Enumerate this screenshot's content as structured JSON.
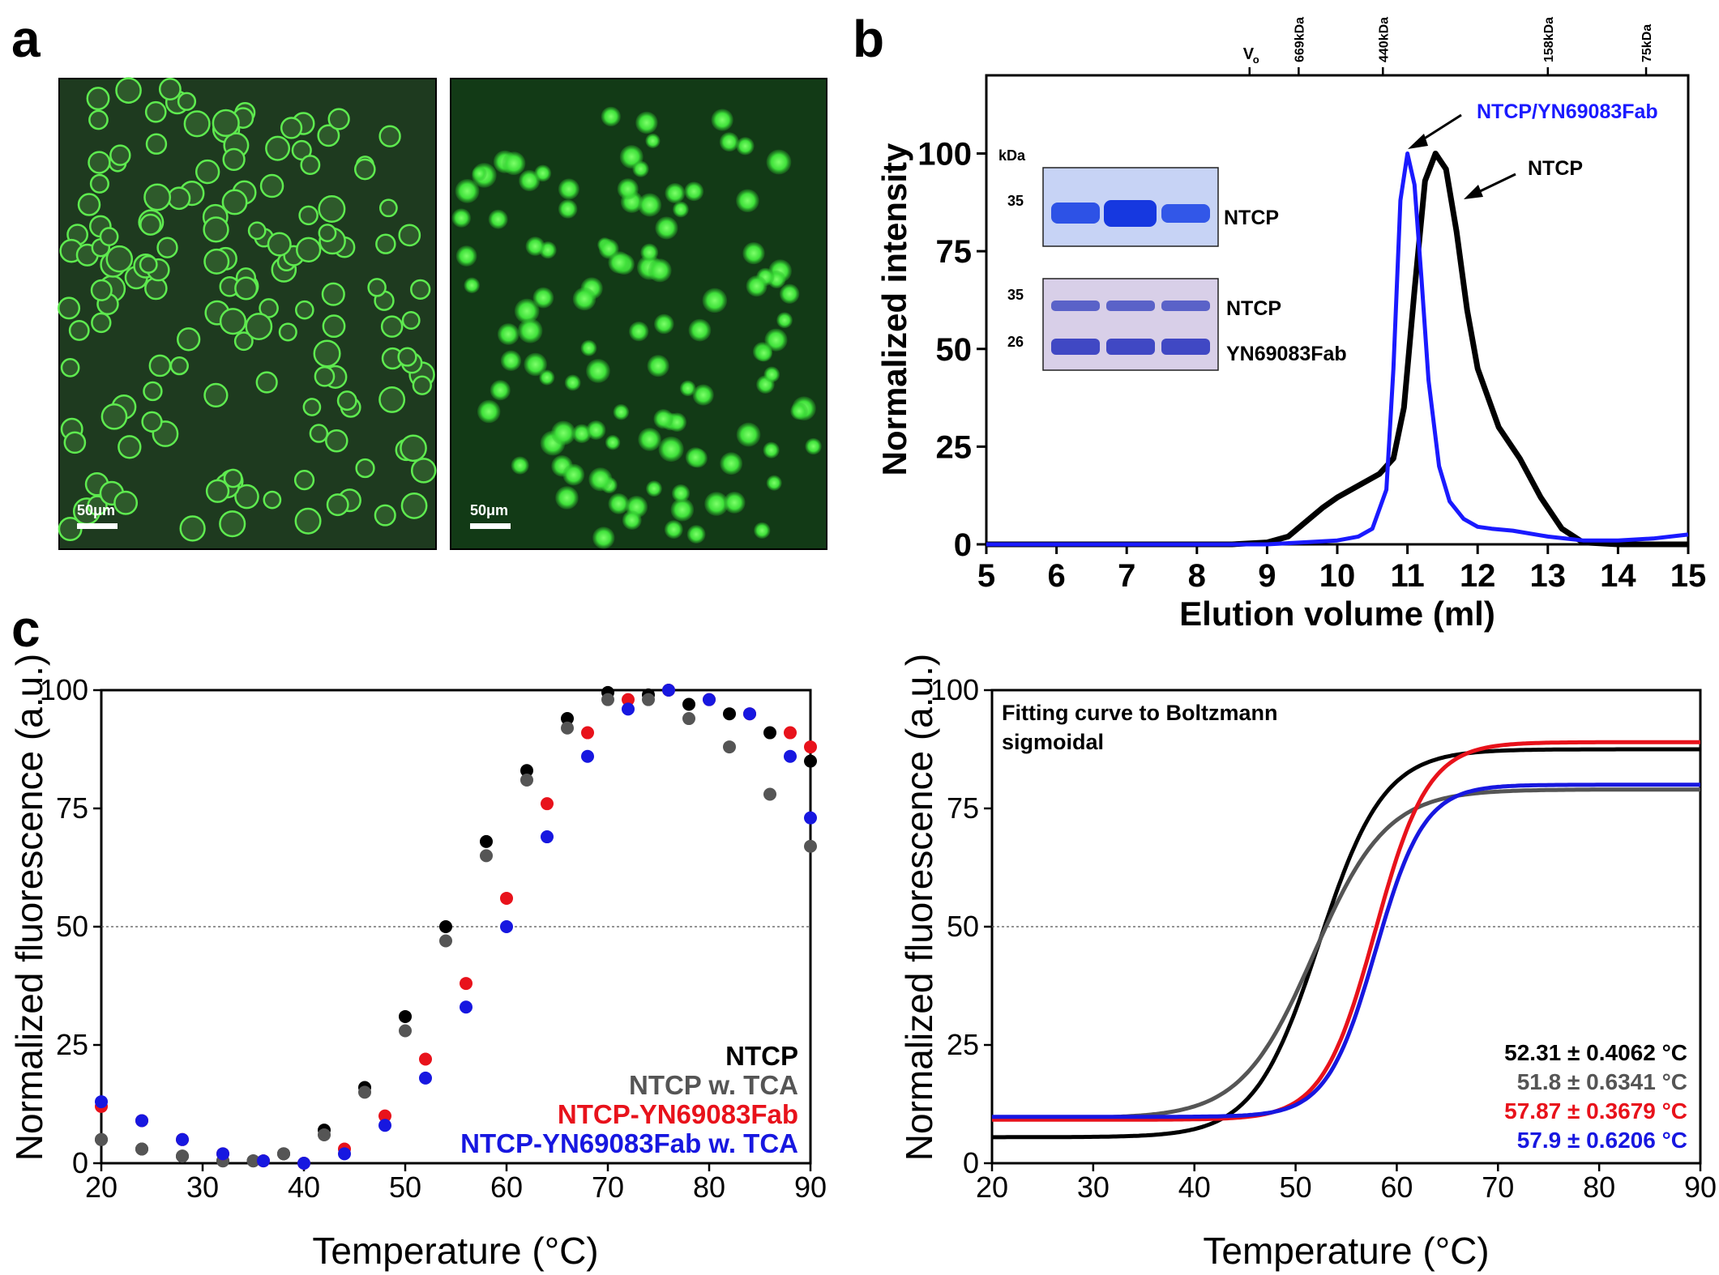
{
  "panels": {
    "a": "a",
    "b": "b",
    "c": "c"
  },
  "panel_a": {
    "scale_bar_left": "50μm",
    "scale_bar_right": "50μm",
    "color": "#22d63a"
  },
  "gel": {
    "kda": "kDa",
    "top_marker": "35",
    "top_band": "NTCP",
    "bottom_markers": [
      "35",
      "26"
    ],
    "bottom_bands": [
      "NTCP",
      "YN69083Fab"
    ]
  },
  "sec_annotations": {
    "complex": "NTCP/YN69083Fab",
    "ntcp": "NTCP"
  },
  "mw_markers": [
    {
      "label": "V",
      "sub": "o",
      "x": 8.75
    },
    {
      "label": "669kDa",
      "x": 9.45
    },
    {
      "label": "440kDa",
      "x": 10.65
    },
    {
      "label": "158kDa",
      "x": 13.0
    },
    {
      "label": "75kDa",
      "x": 14.4
    }
  ],
  "legend_c1": [
    {
      "name": "NTCP",
      "color": "#000000"
    },
    {
      "name": "NTCP w. TCA",
      "color": "#555555"
    },
    {
      "name": "NTCP-YN69083Fab",
      "color": "#e8121b"
    },
    {
      "name": "NTCP-YN69083Fab w. TCA",
      "color": "#1717e0"
    }
  ],
  "fit": {
    "title_line1": "Fitting curve to Boltzmann",
    "title_line2": "sigmoidal",
    "values": [
      {
        "text": "52.31 ± 0.4062 °C",
        "color": "#000000"
      },
      {
        "text": "51.8 ± 0.6341 °C",
        "color": "#555555"
      },
      {
        "text": "57.87 ± 0.3679 °C",
        "color": "#e8121b"
      },
      {
        "text": "57.9 ± 0.6206 °C",
        "color": "#1717e0"
      }
    ]
  },
  "chart_data": [
    {
      "type": "line",
      "xlabel": "Elution volume (ml)",
      "ylabel": "Normalized intensity",
      "xlim": [
        5,
        15
      ],
      "ylim": [
        0,
        120
      ],
      "xticks": [
        5,
        6,
        7,
        8,
        9,
        10,
        11,
        12,
        13,
        14,
        15
      ],
      "yticks": [
        0,
        25,
        50,
        75,
        100
      ],
      "series": [
        {
          "name": "NTCP",
          "color": "#000000",
          "x": [
            5,
            8.5,
            9.0,
            9.3,
            9.5,
            9.8,
            10.0,
            10.3,
            10.6,
            10.8,
            10.95,
            11.1,
            11.25,
            11.4,
            11.55,
            11.7,
            11.85,
            12.0,
            12.3,
            12.6,
            12.9,
            13.2,
            13.5,
            14,
            15
          ],
          "y": [
            0,
            0,
            0.5,
            2,
            5,
            9.5,
            12,
            15,
            18,
            22,
            35,
            65,
            93,
            100,
            96,
            80,
            60,
            45,
            30,
            22,
            12,
            4,
            0.5,
            0,
            0
          ]
        },
        {
          "name": "NTCP/YN69083Fab",
          "color": "#1a1aff",
          "x": [
            5,
            9,
            9.5,
            10.0,
            10.3,
            10.5,
            10.7,
            10.8,
            10.9,
            11.0,
            11.1,
            11.2,
            11.3,
            11.45,
            11.6,
            11.8,
            12.0,
            12.2,
            12.5,
            13.0,
            13.5,
            14,
            14.5,
            15
          ],
          "y": [
            0,
            0,
            0.5,
            1,
            2,
            4,
            14,
            45,
            88,
            100,
            92,
            68,
            42,
            20,
            11,
            6.5,
            4.5,
            4,
            3.5,
            2,
            1,
            1,
            1.5,
            2.5
          ]
        }
      ]
    },
    {
      "type": "scatter",
      "xlabel": "Temperature (°C)",
      "ylabel": "Normalized fluorescence (a.u.)",
      "xlim": [
        20,
        90
      ],
      "ylim": [
        0,
        100
      ],
      "xticks": [
        20,
        30,
        40,
        50,
        60,
        70,
        80,
        90
      ],
      "yticks": [
        0,
        25,
        50,
        75,
        100
      ],
      "reference_line": 50,
      "series": [
        {
          "name": "NTCP",
          "color": "#000000",
          "x": [
            20,
            24,
            28,
            32,
            35,
            38,
            42,
            46,
            50,
            54,
            58,
            62,
            66,
            70,
            74,
            78,
            82,
            86,
            90
          ],
          "y": [
            5,
            3,
            1.5,
            0.5,
            0.5,
            2,
            7,
            16,
            31,
            50,
            68,
            83,
            94,
            99.5,
            99,
            97,
            95,
            91,
            85
          ]
        },
        {
          "name": "NTCP w. TCA",
          "color": "#555555",
          "x": [
            20,
            24,
            28,
            32,
            35,
            38,
            42,
            46,
            50,
            54,
            58,
            62,
            66,
            70,
            74,
            78,
            82,
            86,
            90
          ],
          "y": [
            5,
            3,
            1.5,
            0.5,
            0.5,
            2,
            6,
            15,
            28,
            47,
            65,
            81,
            92,
            98,
            98,
            94,
            88,
            78,
            67
          ]
        },
        {
          "name": "NTCP-YN69083Fab",
          "color": "#e8121b",
          "x": [
            20,
            24,
            28,
            32,
            36,
            40,
            44,
            48,
            52,
            56,
            60,
            64,
            68,
            72,
            76,
            80,
            84,
            88,
            90
          ],
          "y": [
            12,
            9,
            5,
            2,
            0.5,
            0,
            3,
            10,
            22,
            38,
            56,
            76,
            91,
            98,
            100,
            98,
            95,
            91,
            88
          ]
        },
        {
          "name": "NTCP-YN69083Fab w. TCA",
          "color": "#1717e0",
          "x": [
            20,
            24,
            28,
            32,
            36,
            40,
            44,
            48,
            52,
            56,
            60,
            64,
            68,
            72,
            76,
            80,
            84,
            88,
            90
          ],
          "y": [
            13,
            9,
            5,
            2,
            0.5,
            0,
            2,
            8,
            18,
            33,
            50,
            69,
            86,
            96,
            100,
            98,
            95,
            86,
            73
          ]
        }
      ]
    },
    {
      "type": "line",
      "xlabel": "Temperature (°C)",
      "ylabel": "Normalized fluorescence (a.u.)",
      "xlim": [
        20,
        90
      ],
      "ylim": [
        0,
        100
      ],
      "xticks": [
        20,
        30,
        40,
        50,
        60,
        70,
        80,
        90
      ],
      "yticks": [
        0,
        25,
        50,
        75,
        100
      ],
      "reference_line": 50,
      "series": [
        {
          "name": "NTCP",
          "color": "#000000",
          "bottom": 5.5,
          "top": 87.5,
          "v50": 52.31,
          "slope": 3.2
        },
        {
          "name": "NTCP w. TCA",
          "color": "#555555",
          "bottom": 9.5,
          "top": 79,
          "v50": 51.8,
          "slope": 3.6
        },
        {
          "name": "NTCP-YN69083Fab",
          "color": "#e8121b",
          "bottom": 9.2,
          "top": 89,
          "v50": 57.87,
          "slope": 2.6
        },
        {
          "name": "NTCP-YN69083Fab w. TCA",
          "color": "#1717e0",
          "bottom": 9.8,
          "top": 80,
          "v50": 57.9,
          "slope": 2.4
        }
      ]
    }
  ]
}
